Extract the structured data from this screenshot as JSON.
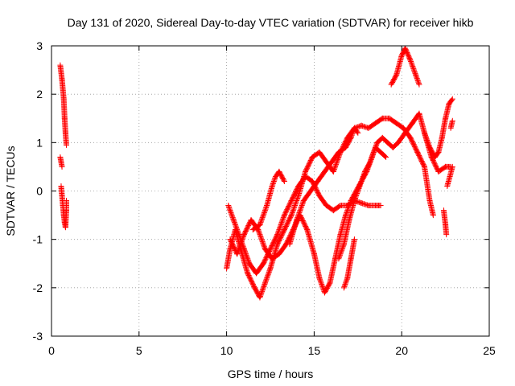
{
  "chart_data": {
    "type": "scatter",
    "title": "Day 131 of 2020, Sidereal Day-to-day VTEC variation (SDTVAR) for receiver hikb",
    "xlabel": "GPS time / hours",
    "ylabel": "SDTVAR / TECUs",
    "xlim": [
      0,
      25
    ],
    "ylim": [
      -3,
      3
    ],
    "xticks": [
      0,
      5,
      10,
      15,
      20,
      25
    ],
    "yticks": [
      -3,
      -2,
      -1,
      0,
      1,
      2,
      3
    ],
    "grid": true,
    "legend": "none",
    "marker": "plus",
    "color": "#ff0000",
    "tracks": [
      [
        [
          0.5,
          2.6
        ],
        [
          0.6,
          2.3
        ],
        [
          0.7,
          1.9
        ],
        [
          0.75,
          1.5
        ],
        [
          0.8,
          1.2
        ],
        [
          0.85,
          0.95
        ]
      ],
      [
        [
          0.5,
          0.7
        ],
        [
          0.55,
          0.6
        ],
        [
          0.6,
          0.5
        ]
      ],
      [
        [
          0.55,
          0.1
        ],
        [
          0.6,
          -0.1
        ],
        [
          0.65,
          -0.3
        ],
        [
          0.7,
          -0.5
        ],
        [
          0.75,
          -0.65
        ],
        [
          0.8,
          -0.75
        ],
        [
          0.85,
          -0.4
        ],
        [
          0.85,
          -0.2
        ]
      ],
      [
        [
          10.0,
          -1.6
        ],
        [
          10.2,
          -1.2
        ],
        [
          10.5,
          -0.8
        ],
        [
          10.8,
          -1.2
        ],
        [
          11.2,
          -1.7
        ],
        [
          11.6,
          -2.0
        ],
        [
          11.9,
          -2.2
        ],
        [
          12.2,
          -1.9
        ],
        [
          12.5,
          -1.6
        ],
        [
          12.9,
          -1.1
        ],
        [
          13.3,
          -0.8
        ],
        [
          13.7,
          -0.5
        ],
        [
          14.1,
          -0.1
        ],
        [
          14.5,
          0.4
        ],
        [
          14.9,
          0.7
        ],
        [
          15.3,
          0.8
        ],
        [
          15.7,
          0.6
        ],
        [
          16.1,
          0.4
        ],
        [
          16.5,
          0.8
        ],
        [
          16.9,
          1.1
        ],
        [
          17.3,
          1.3
        ],
        [
          17.7,
          1.35
        ],
        [
          18.1,
          1.3
        ],
        [
          18.5,
          1.4
        ],
        [
          18.9,
          1.5
        ],
        [
          19.3,
          1.5
        ],
        [
          19.7,
          1.4
        ],
        [
          20.1,
          1.3
        ],
        [
          20.5,
          1.1
        ],
        [
          20.9,
          0.8
        ],
        [
          21.3,
          0.5
        ],
        [
          21.6,
          -0.2
        ],
        [
          21.8,
          -0.5
        ]
      ],
      [
        [
          10.1,
          -0.3
        ],
        [
          10.4,
          -0.6
        ],
        [
          10.7,
          -0.9
        ],
        [
          11.0,
          -1.2
        ],
        [
          11.3,
          -1.5
        ],
        [
          11.7,
          -1.7
        ],
        [
          12.1,
          -1.5
        ],
        [
          12.5,
          -1.2
        ],
        [
          12.9,
          -0.9
        ],
        [
          13.3,
          -0.5
        ],
        [
          13.7,
          -0.2
        ],
        [
          14.1,
          0.1
        ],
        [
          14.5,
          0.3
        ],
        [
          14.9,
          0.2
        ],
        [
          15.3,
          -0.1
        ],
        [
          15.7,
          -0.3
        ],
        [
          16.1,
          -0.4
        ],
        [
          16.5,
          -0.3
        ],
        [
          16.9,
          -0.3
        ],
        [
          17.3,
          -0.2
        ],
        [
          17.7,
          -0.25
        ],
        [
          18.1,
          -0.3
        ],
        [
          18.5,
          -0.3
        ],
        [
          18.8,
          -0.3
        ]
      ],
      [
        [
          10.2,
          -1.0
        ],
        [
          10.6,
          -1.3
        ],
        [
          11.0,
          -0.9
        ],
        [
          11.4,
          -0.6
        ],
        [
          11.8,
          -0.8
        ],
        [
          12.2,
          -1.2
        ],
        [
          12.6,
          -1.4
        ],
        [
          13.0,
          -1.3
        ],
        [
          13.4,
          -1.1
        ],
        [
          13.8,
          -0.8
        ],
        [
          14.2,
          -0.5
        ],
        [
          14.6,
          -0.8
        ],
        [
          15.0,
          -1.3
        ],
        [
          15.3,
          -1.8
        ],
        [
          15.6,
          -2.1
        ],
        [
          15.9,
          -1.9
        ],
        [
          16.2,
          -1.4
        ],
        [
          16.5,
          -0.9
        ],
        [
          16.8,
          -0.5
        ],
        [
          17.1,
          -0.2
        ],
        [
          17.4,
          0.0
        ],
        [
          17.7,
          0.2
        ],
        [
          18.0,
          0.4
        ],
        [
          18.3,
          0.7
        ],
        [
          18.6,
          1.0
        ],
        [
          18.9,
          1.1
        ],
        [
          19.2,
          1.0
        ],
        [
          19.5,
          0.9
        ],
        [
          19.8,
          1.0
        ],
        [
          20.2,
          1.2
        ],
        [
          20.6,
          1.4
        ],
        [
          21.0,
          1.6
        ],
        [
          21.3,
          1.2
        ],
        [
          21.7,
          0.7
        ],
        [
          22.1,
          0.4
        ],
        [
          22.5,
          0.5
        ],
        [
          22.8,
          0.5
        ]
      ],
      [
        [
          11.5,
          -0.8
        ],
        [
          11.9,
          -0.7
        ],
        [
          12.3,
          -0.3
        ],
        [
          12.6,
          0.1
        ],
        [
          12.8,
          0.3
        ],
        [
          13.0,
          0.4
        ],
        [
          13.3,
          0.2
        ]
      ],
      [
        [
          13.6,
          -1.1
        ],
        [
          14.0,
          -0.6
        ],
        [
          14.4,
          -0.2
        ],
        [
          14.8,
          0.0
        ],
        [
          15.2,
          0.2
        ],
        [
          15.6,
          0.4
        ],
        [
          16.0,
          0.6
        ],
        [
          16.4,
          0.8
        ],
        [
          16.8,
          0.9
        ],
        [
          17.1,
          1.1
        ],
        [
          17.3,
          1.3
        ],
        [
          17.5,
          1.2
        ]
      ],
      [
        [
          16.4,
          -1.4
        ],
        [
          16.7,
          -1.1
        ],
        [
          17.0,
          -0.6
        ],
        [
          17.3,
          -0.2
        ],
        [
          17.6,
          0.1
        ],
        [
          17.9,
          0.4
        ],
        [
          18.2,
          0.6
        ],
        [
          18.5,
          0.9
        ],
        [
          18.8,
          0.8
        ],
        [
          19.1,
          0.7
        ]
      ],
      [
        [
          16.7,
          -2.0
        ],
        [
          16.9,
          -1.8
        ],
        [
          17.1,
          -1.4
        ],
        [
          17.3,
          -1.0
        ]
      ],
      [
        [
          19.4,
          2.2
        ],
        [
          19.7,
          2.4
        ],
        [
          20.0,
          2.8
        ],
        [
          20.2,
          2.95
        ],
        [
          20.5,
          2.7
        ],
        [
          20.8,
          2.4
        ],
        [
          21.0,
          2.2
        ]
      ],
      [
        [
          21.3,
          1.2
        ],
        [
          21.6,
          0.9
        ],
        [
          21.9,
          0.7
        ],
        [
          22.1,
          0.8
        ],
        [
          22.3,
          1.1
        ],
        [
          22.5,
          1.5
        ],
        [
          22.7,
          1.8
        ],
        [
          22.9,
          1.9
        ]
      ],
      [
        [
          22.4,
          -0.4
        ],
        [
          22.5,
          -0.7
        ],
        [
          22.55,
          -0.9
        ]
      ],
      [
        [
          22.6,
          0.1
        ],
        [
          22.75,
          0.3
        ],
        [
          22.9,
          0.5
        ]
      ],
      [
        [
          22.8,
          1.3
        ],
        [
          22.9,
          1.45
        ]
      ]
    ]
  }
}
